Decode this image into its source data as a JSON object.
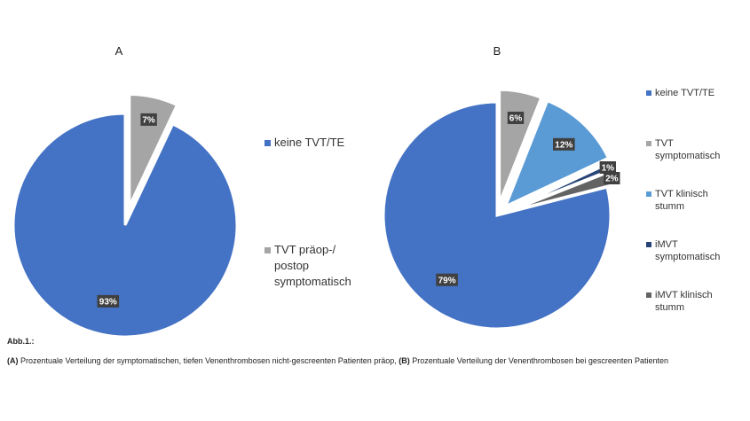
{
  "chart_data": [
    {
      "type": "pie",
      "title": "A",
      "legend_position": "right",
      "slices": [
        {
          "label": "keine TVT/TE",
          "value": 93,
          "data_label": "93%",
          "color": "#4472C4",
          "exploded": false
        },
        {
          "label": "TVT präop-/ postop symptomatisch",
          "value": 7,
          "data_label": "7%",
          "color": "#A5A5A5",
          "exploded": true
        }
      ]
    },
    {
      "type": "pie",
      "title": "B",
      "legend_position": "right",
      "slices": [
        {
          "label": "keine TVT/TE",
          "value": 79,
          "data_label": "79%",
          "color": "#4472C4",
          "exploded": false
        },
        {
          "label": "TVT symptomatisch",
          "value": 6,
          "data_label": "6%",
          "color": "#A5A5A5",
          "exploded": true
        },
        {
          "label": "TVT klinisch stumm",
          "value": 12,
          "data_label": "12%",
          "color": "#5B9BD5",
          "exploded": true
        },
        {
          "label": "iMVT symptomatisch",
          "value": 1,
          "data_label": "1%",
          "color": "#264478",
          "exploded": true
        },
        {
          "label": "iMVT klinisch stumm",
          "value": 2,
          "data_label": "2%",
          "color": "#636363",
          "exploded": true
        }
      ]
    }
  ],
  "caption": {
    "heading": "Abb.1.:",
    "part_a_marker": "(A)",
    "part_a_text": " Prozentuale Verteilung der symptomatischen, tiefen Venenthrombosen nicht-gescreenten Patienten präop, ",
    "part_b_marker": "(B)",
    "part_b_text": " Prozentuale Verteilung der Venenthrombosen bei gescreenten Patienten"
  },
  "colors": {
    "blue": "#4472C4",
    "gray": "#A5A5A5",
    "light_blue": "#5B9BD5",
    "dark_blue": "#264478",
    "dark_gray": "#636363",
    "label_box": "#404040"
  }
}
